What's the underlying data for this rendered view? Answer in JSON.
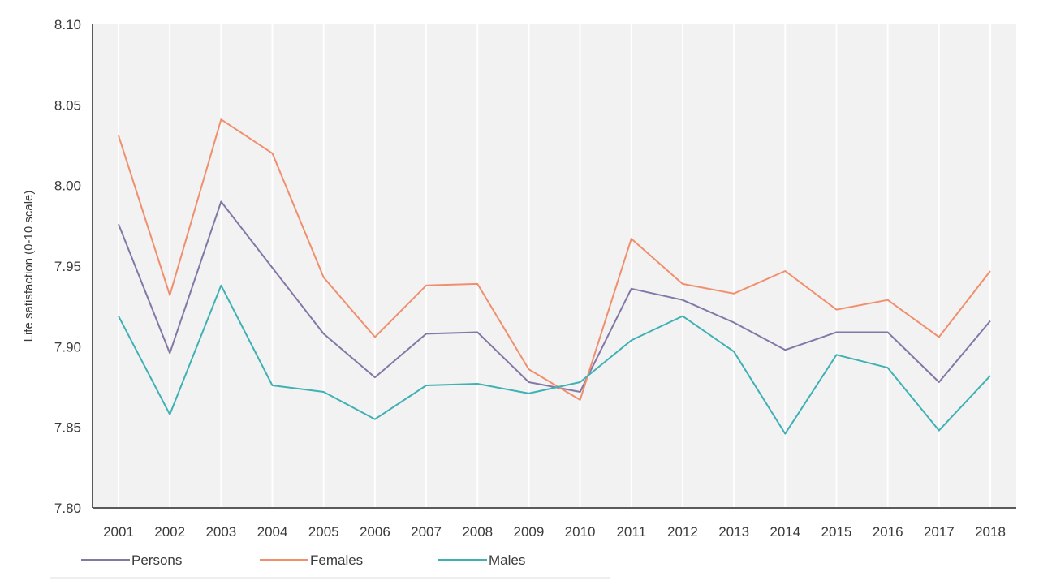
{
  "chart_data": {
    "type": "line",
    "ylabel": "Life satisfaction (0-10 scale)",
    "xlabel": "",
    "ylim": [
      7.8,
      8.1
    ],
    "y_ticks": [
      "7.80",
      "7.85",
      "7.90",
      "7.95",
      "8.00",
      "8.05",
      "8.10"
    ],
    "categories": [
      "2001",
      "2002",
      "2003",
      "2004",
      "2005",
      "2006",
      "2007",
      "2008",
      "2009",
      "2010",
      "2011",
      "2012",
      "2013",
      "2014",
      "2015",
      "2016",
      "2017",
      "2018"
    ],
    "grid": "vertical",
    "legend_position": "bottom",
    "series": [
      {
        "name": "Persons",
        "color": "#8377a6",
        "values": [
          7.976,
          7.896,
          7.99,
          7.949,
          7.908,
          7.881,
          7.908,
          7.909,
          7.878,
          7.872,
          7.936,
          7.929,
          7.915,
          7.898,
          7.909,
          7.909,
          7.878,
          7.916
        ]
      },
      {
        "name": "Females",
        "color": "#f08f6e",
        "values": [
          8.031,
          7.932,
          8.041,
          8.02,
          7.943,
          7.906,
          7.938,
          7.939,
          7.886,
          7.867,
          7.967,
          7.939,
          7.933,
          7.947,
          7.923,
          7.929,
          7.906,
          7.947
        ]
      },
      {
        "name": "Males",
        "color": "#3fb1b4",
        "values": [
          7.919,
          7.858,
          7.938,
          7.876,
          7.872,
          7.855,
          7.876,
          7.877,
          7.871,
          7.878,
          7.904,
          7.919,
          7.897,
          7.846,
          7.895,
          7.887,
          7.848,
          7.882
        ]
      }
    ]
  }
}
